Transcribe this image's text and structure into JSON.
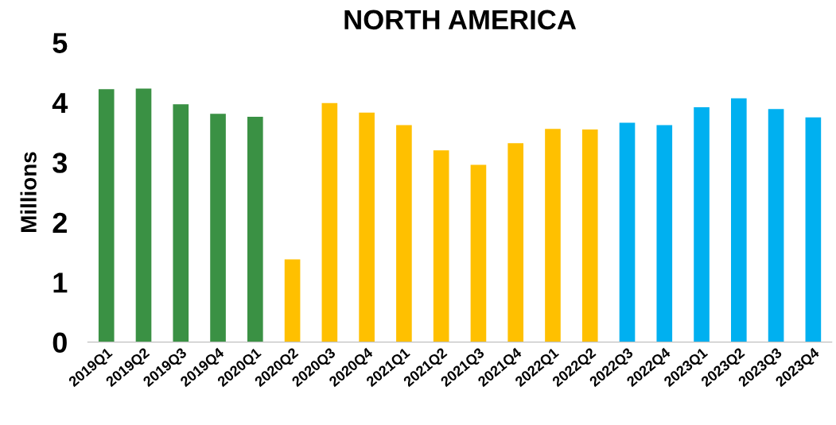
{
  "chart_data": {
    "type": "bar",
    "title": "NORTH AMERICA",
    "ylabel": "Millions",
    "categories": [
      "2019Q1",
      "2019Q2",
      "2019Q3",
      "2019Q4",
      "2020Q1",
      "2020Q2",
      "2020Q3",
      "2020Q4",
      "2021Q1",
      "2021Q2",
      "2021Q3",
      "2021Q4",
      "2022Q1",
      "2022Q2",
      "2022Q3",
      "2022Q4",
      "2023Q1",
      "2023Q2",
      "2023Q3",
      "2023Q4"
    ],
    "values": [
      4.22,
      4.23,
      3.97,
      3.81,
      3.76,
      1.38,
      3.99,
      3.83,
      3.62,
      3.2,
      2.96,
      3.32,
      3.56,
      3.55,
      3.66,
      3.62,
      3.92,
      4.07,
      3.89,
      3.75
    ],
    "colors": [
      "#3a9144",
      "#3a9144",
      "#3a9144",
      "#3a9144",
      "#3a9144",
      "#ffc000",
      "#ffc000",
      "#ffc000",
      "#ffc000",
      "#ffc000",
      "#ffc000",
      "#ffc000",
      "#ffc000",
      "#ffc000",
      "#00b0f0",
      "#00b0f0",
      "#00b0f0",
      "#00b0f0",
      "#00b0f0",
      "#00b0f0"
    ],
    "ylim": [
      0,
      5
    ],
    "yticks": [
      0,
      1,
      2,
      3,
      4,
      5
    ],
    "grid": false
  }
}
